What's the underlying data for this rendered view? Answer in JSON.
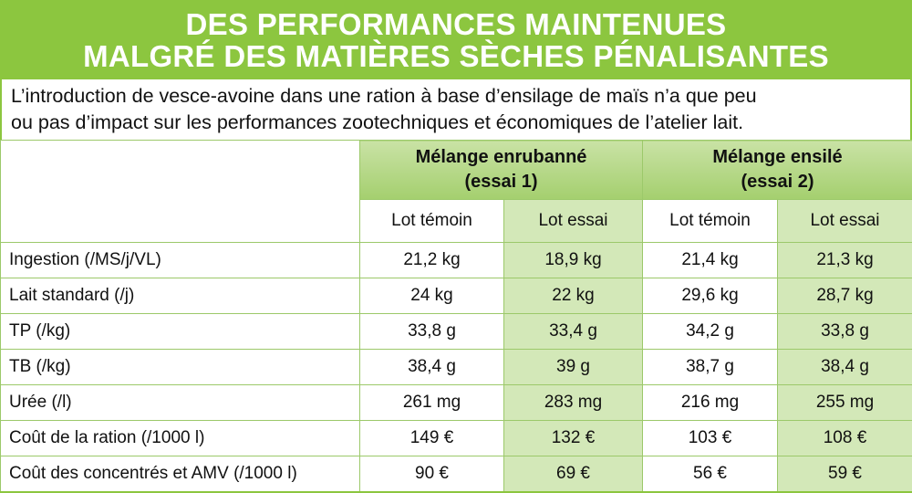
{
  "title": {
    "line1": "DES PERFORMANCES MAINTENUES",
    "line2": "MALGRÉ DES MATIÈRES SÈCHES PÉNALISANTES"
  },
  "intro": {
    "line1": "L’introduction de vesce-avoine dans une ration à base d’ensilage de maïs n’a que peu",
    "line2": "ou pas d’impact sur les performances zootechniques et économiques de l’atelier lait."
  },
  "colors": {
    "accent": "#8cc63f",
    "header_fill": "#a4cf6e",
    "essai_fill": "#d3e8b8"
  },
  "table": {
    "groups": [
      {
        "line1": "Mélange enrubanné",
        "line2": "(essai 1)"
      },
      {
        "line1": "Mélange ensilé",
        "line2": "(essai 2)"
      }
    ],
    "subheaders": [
      "Lot témoin",
      "Lot essai",
      "Lot témoin",
      "Lot essai"
    ],
    "rows": [
      {
        "label": "Ingestion (/MS/j/VL)",
        "values": [
          "21,2 kg",
          "18,9 kg",
          "21,4 kg",
          "21,3 kg"
        ]
      },
      {
        "label": "Lait standard (/j)",
        "values": [
          "24 kg",
          "22 kg",
          "29,6 kg",
          "28,7 kg"
        ]
      },
      {
        "label": "TP (/kg)",
        "values": [
          "33,8 g",
          "33,4 g",
          "34,2 g",
          "33,8 g"
        ]
      },
      {
        "label": "TB (/kg)",
        "values": [
          "38,4 g",
          "39 g",
          "38,7 g",
          "38,4 g"
        ]
      },
      {
        "label": "Urée (/l)",
        "values": [
          "261 mg",
          "283 mg",
          "216 mg",
          "255 mg"
        ]
      },
      {
        "label": "Coût de la ration (/1000 l)",
        "values": [
          "149 €",
          "132 €",
          "103 €",
          "108 €"
        ]
      },
      {
        "label": "Coût des concentrés et AMV (/1000 l)",
        "values": [
          "90 €",
          "69 €",
          "56 €",
          "59 €"
        ]
      }
    ]
  }
}
